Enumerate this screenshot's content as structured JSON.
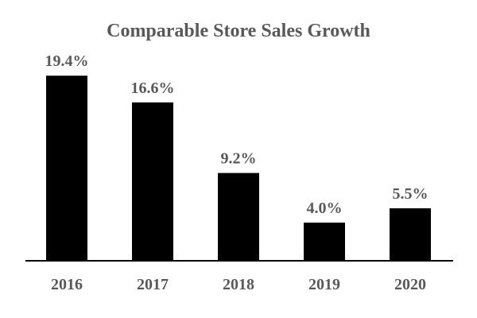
{
  "chart_data": {
    "type": "bar",
    "title": "Comparable Store Sales Growth",
    "categories": [
      "2016",
      "2017",
      "2018",
      "2019",
      "2020"
    ],
    "values": [
      19.4,
      16.6,
      9.2,
      4.0,
      5.5
    ],
    "value_labels": [
      "19.4%",
      "16.6%",
      "9.2%",
      "4.0%",
      "5.5%"
    ],
    "xlabel": "",
    "ylabel": "",
    "ylim": [
      0,
      20
    ],
    "grid": false,
    "legend": "none",
    "colors": {
      "bar": "#000000",
      "text": "#595959",
      "axis": "#000000",
      "background": "#ffffff"
    }
  }
}
